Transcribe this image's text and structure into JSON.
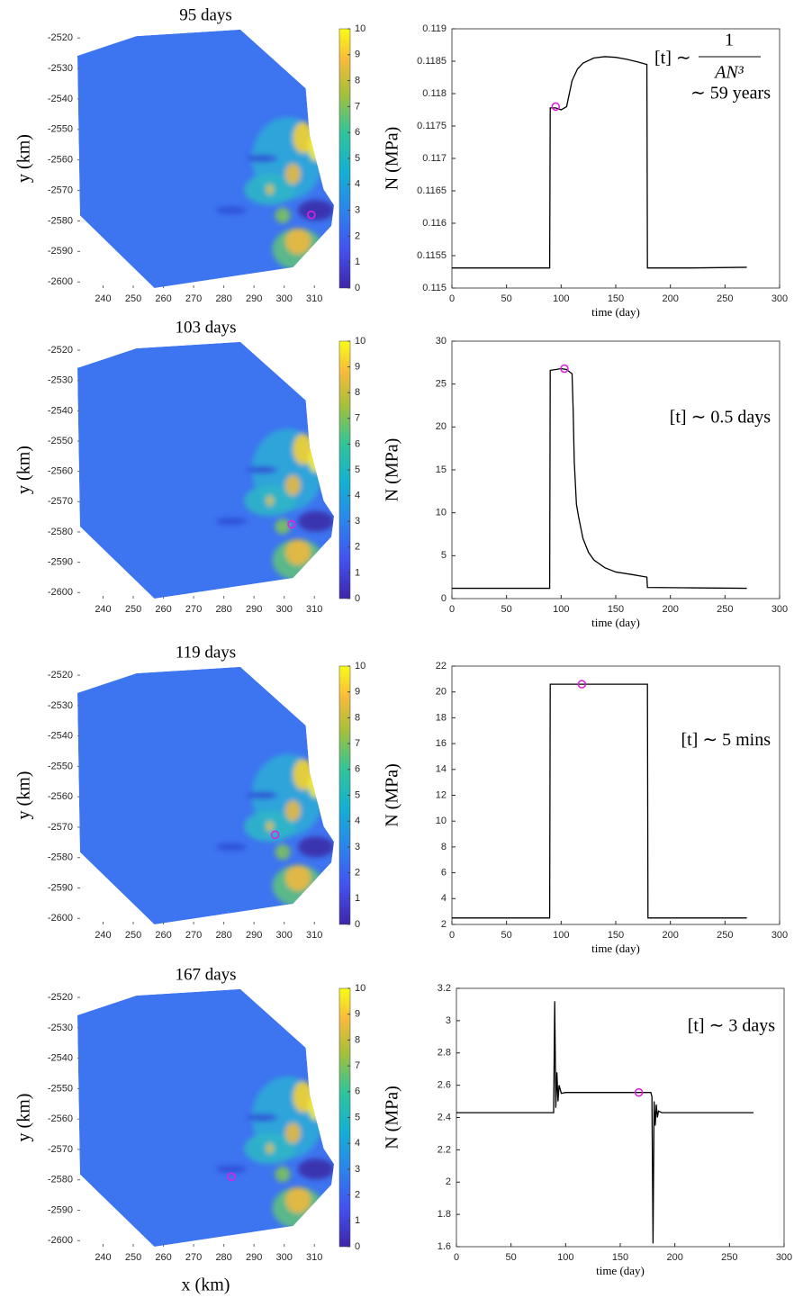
{
  "chart_data": [
    {
      "type": "map",
      "title": "95 days",
      "ylabel": "y (km)",
      "xlim": [
        231.5,
        316.5
      ],
      "ylim": [
        -2602,
        -2517
      ],
      "xticks": [
        240,
        250,
        260,
        270,
        280,
        290,
        300,
        310
      ],
      "yticks": [
        -2520,
        -2530,
        -2540,
        -2550,
        -2560,
        -2570,
        -2580,
        -2590,
        -2600
      ],
      "colorbar": {
        "lim": [
          0,
          10
        ],
        "ticks": [
          0,
          1,
          2,
          3,
          4,
          5,
          6,
          7,
          8,
          9,
          10
        ]
      },
      "marker": {
        "x": 309,
        "y": -2578,
        "color": "#e020e0"
      }
    },
    {
      "type": "line",
      "ylabel": "N (MPa)",
      "xlabel": "time (day)",
      "x": [
        0,
        89.5,
        90,
        95,
        100,
        105,
        110,
        115,
        120,
        130,
        140,
        150,
        160,
        170,
        178.5,
        179,
        220,
        270
      ],
      "series": [
        {
          "color": "#000000",
          "values": [
            0.11531,
            0.11531,
            0.11778,
            0.11778,
            0.11775,
            0.1178,
            0.1182,
            0.11838,
            0.11847,
            0.11855,
            0.11857,
            0.11856,
            0.11853,
            0.11849,
            0.11845,
            0.11531,
            0.11531,
            0.11532
          ]
        }
      ],
      "xlim": [
        0,
        300
      ],
      "xticks": [
        0,
        50,
        100,
        150,
        200,
        250,
        300
      ],
      "ylim": [
        0.115,
        0.119
      ],
      "yticks": [
        0.115,
        0.1155,
        0.116,
        0.1165,
        0.117,
        0.1175,
        0.118,
        0.1185,
        0.119
      ],
      "marker": {
        "x": 95,
        "y": 0.1178,
        "color": "#e020e0"
      },
      "annotation": [
        "[t] ∼",
        "1",
        "AN³",
        "∼ 59 years"
      ]
    },
    {
      "type": "map",
      "title": "103 days",
      "ylabel": "y (km)",
      "xlim": [
        231.5,
        316.5
      ],
      "ylim": [
        -2602,
        -2517
      ],
      "xticks": [
        240,
        250,
        260,
        270,
        280,
        290,
        300,
        310
      ],
      "yticks": [
        -2520,
        -2530,
        -2540,
        -2550,
        -2560,
        -2570,
        -2580,
        -2590,
        -2600
      ],
      "colorbar": {
        "lim": [
          0,
          10
        ],
        "ticks": [
          0,
          1,
          2,
          3,
          4,
          5,
          6,
          7,
          8,
          9,
          10
        ]
      },
      "marker": {
        "x": 302.5,
        "y": -2577.5,
        "color": "#e020e0"
      }
    },
    {
      "type": "line",
      "ylabel": "N (MPa)",
      "xlabel": "time (day)",
      "x": [
        0,
        89.5,
        90,
        95,
        100,
        105,
        110,
        111,
        112,
        114,
        116,
        120,
        125,
        130,
        140,
        150,
        165,
        178.5,
        179,
        220,
        270
      ],
      "series": [
        {
          "color": "#000000",
          "values": [
            1.2,
            1.2,
            26.6,
            26.7,
            26.8,
            26.7,
            26.2,
            22,
            16,
            11,
            9.5,
            7,
            5.4,
            4.5,
            3.6,
            3.1,
            2.8,
            2.5,
            1.3,
            1.25,
            1.2
          ]
        }
      ],
      "xlim": [
        0,
        300
      ],
      "xticks": [
        0,
        50,
        100,
        150,
        200,
        250,
        300
      ],
      "ylim": [
        0,
        30
      ],
      "yticks": [
        0,
        5,
        10,
        15,
        20,
        25,
        30
      ],
      "marker": {
        "x": 103,
        "y": 26.8,
        "color": "#e020e0"
      },
      "annotation": [
        "[t] ∼ 0.5 days"
      ]
    },
    {
      "type": "map",
      "title": "119 days",
      "ylabel": "y (km)",
      "xlim": [
        231.5,
        316.5
      ],
      "ylim": [
        -2602,
        -2517
      ],
      "xticks": [
        240,
        250,
        260,
        270,
        280,
        290,
        300,
        310
      ],
      "yticks": [
        -2520,
        -2530,
        -2540,
        -2550,
        -2560,
        -2570,
        -2580,
        -2590,
        -2600
      ],
      "colorbar": {
        "lim": [
          0,
          10
        ],
        "ticks": [
          0,
          1,
          2,
          3,
          4,
          5,
          6,
          7,
          8,
          9,
          10
        ]
      },
      "marker": {
        "x": 297,
        "y": -2572.5,
        "color": "#e020e0"
      }
    },
    {
      "type": "line",
      "ylabel": "N (MPa)",
      "xlabel": "time (day)",
      "x": [
        0,
        89.5,
        90,
        120,
        150,
        179,
        179.5,
        220,
        270
      ],
      "series": [
        {
          "color": "#000000",
          "values": [
            2.5,
            2.5,
            20.6,
            20.6,
            20.6,
            20.6,
            2.5,
            2.5,
            2.5
          ]
        }
      ],
      "xlim": [
        0,
        300
      ],
      "xticks": [
        0,
        50,
        100,
        150,
        200,
        250,
        300
      ],
      "ylim": [
        2,
        22
      ],
      "yticks": [
        2,
        4,
        6,
        8,
        10,
        12,
        14,
        16,
        18,
        20,
        22
      ],
      "marker": {
        "x": 119,
        "y": 20.6,
        "color": "#e020e0"
      },
      "annotation": [
        "[t] ∼ 5 mins"
      ]
    },
    {
      "type": "map",
      "title": "167 days",
      "ylabel": "y (km)",
      "xlabel": "x (km)",
      "xlim": [
        231.5,
        316.5
      ],
      "ylim": [
        -2602,
        -2517
      ],
      "xticks": [
        240,
        250,
        260,
        270,
        280,
        290,
        300,
        310
      ],
      "yticks": [
        -2520,
        -2530,
        -2540,
        -2550,
        -2560,
        -2570,
        -2580,
        -2590,
        -2600
      ],
      "colorbar": {
        "lim": [
          0,
          10
        ],
        "ticks": [
          0,
          1,
          2,
          3,
          4,
          5,
          6,
          7,
          8,
          9,
          10
        ]
      },
      "marker": {
        "x": 282.5,
        "y": -2579,
        "color": "#e020e0"
      }
    },
    {
      "type": "line",
      "ylabel": "N (MPa)",
      "xlabel": "time (day)",
      "x": [
        0,
        89,
        90,
        91,
        92,
        93,
        94,
        96,
        100,
        178,
        179,
        180,
        181,
        182,
        183,
        184,
        185,
        188,
        220,
        272
      ],
      "series": [
        {
          "color": "#000000",
          "values": [
            2.43,
            2.43,
            3.12,
            2.46,
            2.68,
            2.5,
            2.6,
            2.55,
            2.555,
            2.555,
            2.53,
            1.62,
            2.5,
            2.35,
            2.48,
            2.4,
            2.44,
            2.43,
            2.43,
            2.43
          ]
        }
      ],
      "xlim": [
        0,
        300
      ],
      "xticks": [
        0,
        50,
        100,
        150,
        200,
        250,
        300
      ],
      "ylim": [
        1.6,
        3.2
      ],
      "yticks": [
        1.6,
        1.8,
        2,
        2.2,
        2.4,
        2.6,
        2.8,
        3,
        3.2
      ],
      "marker": {
        "x": 167,
        "y": 2.555,
        "color": "#e020e0"
      },
      "annotation": [
        "[t] ∼ 3 days"
      ]
    }
  ]
}
